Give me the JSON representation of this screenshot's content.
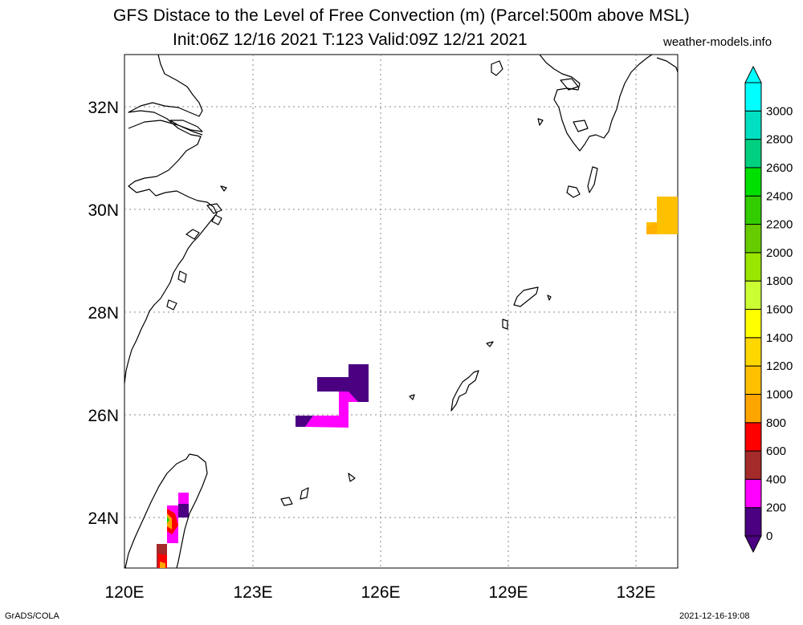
{
  "header": {
    "title_line1": "GFS Distace to the Level of Free Convection (m) (Parcel:500m above MSL)",
    "title_line2": "Init:06Z 12/16 2021 T:123 Valid:09Z 12/21 2021",
    "site": "weather-models.info"
  },
  "footer": {
    "credit": "GrADS/COLA",
    "timestamp": "2021-12-16-19:08"
  },
  "map": {
    "lon_range": [
      120,
      133
    ],
    "lat_range": [
      23,
      33
    ],
    "lat_labels": [
      "24N",
      "26N",
      "28N",
      "30N",
      "32N"
    ],
    "lon_labels": [
      "120E",
      "123E",
      "126E",
      "129E",
      "132E"
    ],
    "grid": "dotted"
  },
  "colorbar": {
    "levels": [
      "0",
      "200",
      "400",
      "600",
      "800",
      "1000",
      "1200",
      "1400",
      "1600",
      "1800",
      "2000",
      "2200",
      "2400",
      "2600",
      "2800",
      "3000"
    ],
    "colors": [
      "#4b0082",
      "#ff00ff",
      "#a52a2a",
      "#ff0000",
      "#ffa500",
      "#ffc000",
      "#ffd700",
      "#ffff00",
      "#ccff33",
      "#99e600",
      "#66cc00",
      "#33cc00",
      "#00e000",
      "#00d080",
      "#00e0c0",
      "#00ffff"
    ]
  },
  "colors": {
    "purple": "#4b0082",
    "magenta": "#ff00ff",
    "brown": "#a52a2a",
    "red": "#ff0000",
    "orange": "#ffa500",
    "gold": "#ffc000",
    "yellow": "#ffd700",
    "green": "#00ff00"
  }
}
